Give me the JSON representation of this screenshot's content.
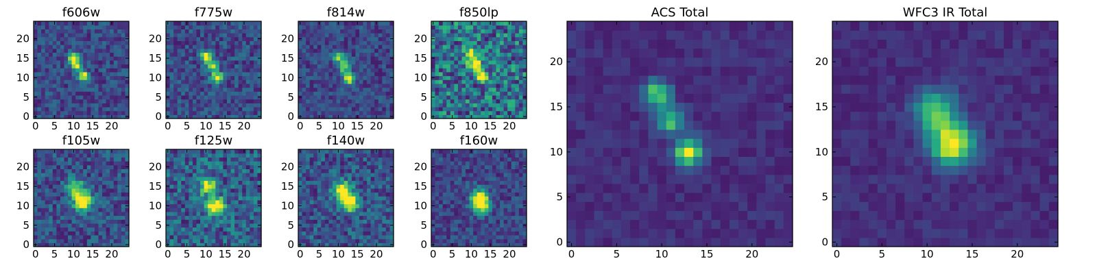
{
  "chart_data": [
    {
      "type": "heatmap",
      "title": "f606w",
      "xlim": [
        0,
        24
      ],
      "ylim": [
        0,
        24
      ],
      "xticks": [
        0,
        5,
        10,
        15,
        20
      ],
      "yticks": [
        0,
        5,
        10,
        15,
        20
      ],
      "colormap": "viridis",
      "source_peaks": [
        {
          "x": 10,
          "y": 15,
          "amp": 1.0
        },
        {
          "x": 11,
          "y": 13,
          "amp": 0.85
        },
        {
          "x": 12.5,
          "y": 10.5,
          "amp": 0.95
        }
      ],
      "sigma": 0.9,
      "noise": 0.3
    },
    {
      "type": "heatmap",
      "title": "f775w",
      "xlim": [
        0,
        24
      ],
      "ylim": [
        0,
        24
      ],
      "xticks": [
        0,
        5,
        10,
        15,
        20
      ],
      "yticks": [
        0,
        5,
        10,
        15,
        20
      ],
      "colormap": "viridis",
      "source_peaks": [
        {
          "x": 10,
          "y": 15.5,
          "amp": 0.8
        },
        {
          "x": 11.5,
          "y": 13,
          "amp": 0.8
        },
        {
          "x": 13,
          "y": 10,
          "amp": 1.0
        }
      ],
      "sigma": 1.0,
      "noise": 0.32
    },
    {
      "type": "heatmap",
      "title": "f814w",
      "xlim": [
        0,
        24
      ],
      "ylim": [
        0,
        24
      ],
      "xticks": [
        0,
        5,
        10,
        15,
        20
      ],
      "yticks": [
        0,
        5,
        10,
        15,
        20
      ],
      "colormap": "viridis",
      "source_peaks": [
        {
          "x": 10,
          "y": 15.5,
          "amp": 0.75
        },
        {
          "x": 11.5,
          "y": 13,
          "amp": 0.8
        },
        {
          "x": 13,
          "y": 10,
          "amp": 1.0
        }
      ],
      "sigma": 1.0,
      "noise": 0.28
    },
    {
      "type": "heatmap",
      "title": "f850lp",
      "xlim": [
        0,
        24
      ],
      "ylim": [
        0,
        24
      ],
      "xticks": [
        0,
        5,
        10,
        15,
        20
      ],
      "yticks": [
        0,
        5,
        10,
        15,
        20
      ],
      "colormap": "viridis",
      "source_peaks": [
        {
          "x": 9.5,
          "y": 16,
          "amp": 0.8
        },
        {
          "x": 11,
          "y": 13.5,
          "amp": 0.85
        },
        {
          "x": 13,
          "y": 10.5,
          "amp": 0.9
        }
      ],
      "sigma": 1.0,
      "noise": 0.6
    },
    {
      "type": "heatmap",
      "title": "f105w",
      "xlim": [
        0,
        24
      ],
      "ylim": [
        0,
        24
      ],
      "xticks": [
        0,
        5,
        10,
        15,
        20
      ],
      "yticks": [
        0,
        5,
        10,
        15,
        20
      ],
      "colormap": "viridis",
      "source_peaks": [
        {
          "x": 10.5,
          "y": 14.5,
          "amp": 0.7
        },
        {
          "x": 12.5,
          "y": 11,
          "amp": 1.0
        }
      ],
      "sigma": 1.6,
      "noise": 0.35
    },
    {
      "type": "heatmap",
      "title": "f125w",
      "xlim": [
        0,
        24
      ],
      "ylim": [
        0,
        24
      ],
      "xticks": [
        0,
        5,
        10,
        15,
        20
      ],
      "yticks": [
        0,
        5,
        10,
        15,
        20
      ],
      "colormap": "viridis",
      "source_peaks": [
        {
          "x": 10.5,
          "y": 15,
          "amp": 0.75
        },
        {
          "x": 12.5,
          "y": 10,
          "amp": 1.0
        }
      ],
      "sigma": 1.5,
      "noise": 0.45
    },
    {
      "type": "heatmap",
      "title": "f140w",
      "xlim": [
        0,
        24
      ],
      "ylim": [
        0,
        24
      ],
      "xticks": [
        0,
        5,
        10,
        15,
        20
      ],
      "yticks": [
        0,
        5,
        10,
        15,
        20
      ],
      "colormap": "viridis",
      "source_peaks": [
        {
          "x": 11,
          "y": 14,
          "amp": 0.85
        },
        {
          "x": 13,
          "y": 11,
          "amp": 1.0
        }
      ],
      "sigma": 1.6,
      "noise": 0.38
    },
    {
      "type": "heatmap",
      "title": "f160w",
      "xlim": [
        0,
        24
      ],
      "ylim": [
        0,
        24
      ],
      "xticks": [
        0,
        5,
        10,
        15,
        20
      ],
      "yticks": [
        0,
        5,
        10,
        15,
        20
      ],
      "colormap": "viridis",
      "source_peaks": [
        {
          "x": 12,
          "y": 12.5,
          "amp": 0.6
        },
        {
          "x": 12.5,
          "y": 10.5,
          "amp": 1.0
        }
      ],
      "sigma": 1.5,
      "noise": 0.28
    },
    {
      "type": "heatmap",
      "title": "ACS Total",
      "xlim": [
        0,
        24
      ],
      "ylim": [
        0,
        24
      ],
      "xticks": [
        0,
        5,
        10,
        15,
        20
      ],
      "yticks": [
        0,
        5,
        10,
        15,
        20
      ],
      "colormap": "viridis",
      "source_peaks": [
        {
          "x": 9.5,
          "y": 16.5,
          "amp": 0.75
        },
        {
          "x": 11,
          "y": 13.5,
          "amp": 0.65
        },
        {
          "x": 13,
          "y": 10,
          "amp": 1.0
        }
      ],
      "sigma": 1.0,
      "noise": 0.12
    },
    {
      "type": "heatmap",
      "title": "WFC3 IR Total",
      "xlim": [
        0,
        24
      ],
      "ylim": [
        0,
        24
      ],
      "xticks": [
        0,
        5,
        10,
        15,
        20
      ],
      "yticks": [
        0,
        5,
        10,
        15,
        20
      ],
      "colormap": "viridis",
      "source_peaks": [
        {
          "x": 11,
          "y": 14.5,
          "amp": 0.7
        },
        {
          "x": 12.8,
          "y": 10.8,
          "amp": 1.0
        }
      ],
      "sigma": 1.6,
      "noise": 0.12
    }
  ]
}
